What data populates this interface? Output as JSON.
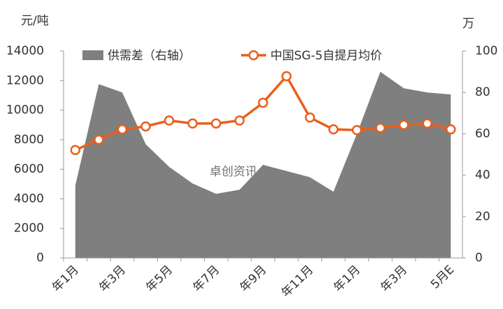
{
  "chart_data": {
    "type": "combo",
    "y_label": "元/吨",
    "y2_label": "万",
    "watermark": "卓创资讯",
    "categories": [
      "年1月",
      null,
      "年3月",
      null,
      "年5月",
      null,
      "年7月",
      null,
      "年9月",
      null,
      "年11月",
      null,
      "年1月",
      null,
      "年3月",
      null,
      "5月E"
    ],
    "series": [
      {
        "name": "供需差（右轴）",
        "type": "area",
        "axis": "y2",
        "color": "#7f7f7f",
        "values": [
          35,
          84,
          80,
          55,
          44,
          36,
          31,
          33,
          45,
          42,
          39,
          32,
          60,
          90,
          82,
          80,
          79
        ]
      },
      {
        "name": "中国SG-5自提月均价",
        "type": "line",
        "axis": "y",
        "color": "#e8601c",
        "values": [
          7300,
          8000,
          8700,
          8900,
          9300,
          9100,
          9100,
          9300,
          10500,
          12300,
          9500,
          8700,
          8650,
          8800,
          9000,
          9100,
          8700
        ]
      }
    ],
    "ylim": [
      0,
      14000
    ],
    "yticks": [
      0,
      2000,
      4000,
      6000,
      8000,
      10000,
      12000,
      14000
    ],
    "y2lim": [
      0,
      100
    ],
    "y2ticks": [
      0,
      20,
      40,
      60,
      80,
      100
    ],
    "grid": false
  }
}
